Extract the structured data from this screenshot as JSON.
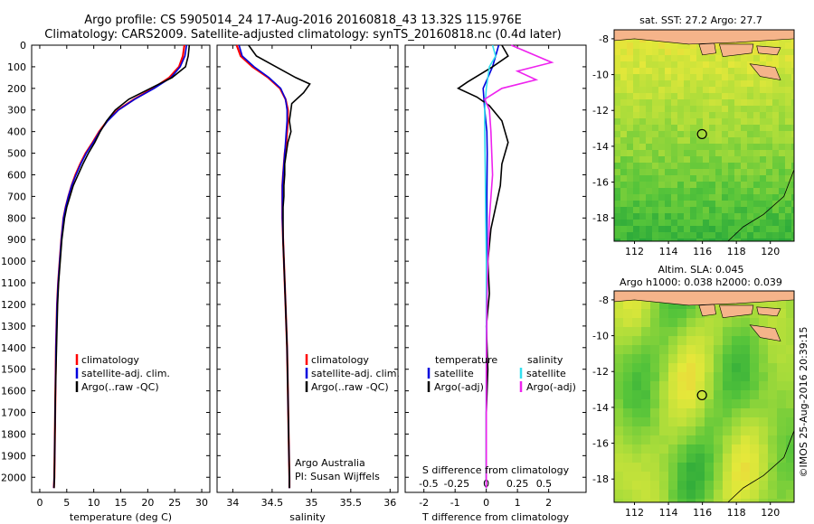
{
  "header": {
    "line1": "Argo profile: CS 5905014_24 17-Aug-2016 20160818_43 13.32S 115.976E",
    "line2": "Climatology: CARS2009. Satellite-adjusted climatology: synTS_20160818.nc (0.4d later)"
  },
  "colors": {
    "climatology": "#ff0000",
    "satellite": "#0000dd",
    "argo": "#000000",
    "sat_salinity": "#33e0f0",
    "argo_salinity": "#ee22ee",
    "land": "#f5b48a"
  },
  "chart_data": [
    {
      "type": "line",
      "name": "temperature-panel",
      "xlabel": "temperature (deg C)",
      "ylabel": "",
      "xlim": [
        -1.5,
        31.5
      ],
      "ylim": [
        0,
        2070
      ],
      "y_reversed": true,
      "xticks": [
        0,
        5,
        10,
        15,
        20,
        25,
        30
      ],
      "yticks": [
        0,
        100,
        200,
        300,
        400,
        500,
        600,
        700,
        800,
        900,
        1000,
        1100,
        1200,
        1300,
        1400,
        1500,
        1600,
        1700,
        1800,
        1900,
        2000
      ],
      "series": [
        {
          "name": "climatology",
          "color": "#ff0000",
          "x": [
            26.8,
            26.5,
            25.8,
            24,
            21,
            17.5,
            14.5,
            12.5,
            11,
            9.8,
            8.5,
            7.5,
            6.6,
            5.9,
            5.3,
            4.8,
            4.4,
            4.0,
            3.7,
            3.4,
            3.2,
            3.0,
            2.9,
            2.8,
            2.7,
            2.6
          ],
          "y": [
            0,
            50,
            100,
            150,
            200,
            250,
            300,
            350,
            400,
            450,
            500,
            550,
            600,
            650,
            700,
            750,
            800,
            900,
            1000,
            1100,
            1200,
            1400,
            1600,
            1800,
            2000,
            2050
          ]
        },
        {
          "name": "satellite-adj. clim.",
          "color": "#0000dd",
          "x": [
            27.2,
            26.9,
            26.0,
            24.3,
            21.2,
            17.6,
            14.6,
            12.6,
            11.1,
            9.9,
            8.6,
            7.6,
            6.7,
            5.9,
            5.3,
            4.8,
            4.4,
            4.0,
            3.7,
            3.4,
            3.2,
            3.0,
            2.9,
            2.8,
            2.7,
            2.6
          ],
          "y": [
            0,
            50,
            100,
            150,
            200,
            250,
            300,
            350,
            400,
            450,
            500,
            550,
            600,
            650,
            700,
            750,
            800,
            900,
            1000,
            1100,
            1200,
            1400,
            1600,
            1800,
            2000,
            2050
          ]
        },
        {
          "name": "Argo(..raw -QC)",
          "color": "#000000",
          "x": [
            27.7,
            27.5,
            27.0,
            24.5,
            20.5,
            16.5,
            14.0,
            12.4,
            11.2,
            10.2,
            9.0,
            8.0,
            7.1,
            6.2,
            5.6,
            5.0,
            4.6,
            4.1,
            3.8,
            3.5,
            3.3,
            3.1,
            2.9,
            2.8,
            2.7,
            2.65
          ],
          "y": [
            0,
            50,
            100,
            150,
            200,
            250,
            300,
            350,
            400,
            450,
            500,
            550,
            600,
            650,
            700,
            750,
            800,
            900,
            1000,
            1100,
            1200,
            1400,
            1600,
            1800,
            2000,
            2050
          ]
        }
      ],
      "legend": [
        "climatology",
        "satellite-adj. clim.",
        "Argo(..raw -QC)"
      ],
      "legend_placement": "lower-center"
    },
    {
      "type": "line",
      "name": "salinity-panel",
      "xlabel": "salinity",
      "xlim": [
        33.8,
        36.1
      ],
      "ylim": [
        0,
        2070
      ],
      "y_reversed": true,
      "xticks": [
        34,
        34.5,
        35,
        35.5,
        36
      ],
      "series": [
        {
          "name": "climatology",
          "color": "#ff0000",
          "x": [
            34.05,
            34.1,
            34.25,
            34.45,
            34.6,
            34.67,
            34.7,
            34.7,
            34.69,
            34.68,
            34.66,
            34.65,
            34.64,
            34.63,
            34.63,
            34.63,
            34.63,
            34.64,
            34.65,
            34.66,
            34.67,
            34.69,
            34.7,
            34.71,
            34.72,
            34.72
          ],
          "y": [
            0,
            50,
            100,
            150,
            200,
            250,
            300,
            350,
            400,
            450,
            500,
            550,
            600,
            650,
            700,
            750,
            800,
            900,
            1000,
            1100,
            1200,
            1400,
            1600,
            1800,
            2000,
            2050
          ]
        },
        {
          "name": "satellite-adj. clim.",
          "color": "#0000dd",
          "x": [
            34.08,
            34.12,
            34.27,
            34.46,
            34.61,
            34.67,
            34.69,
            34.69,
            34.68,
            34.67,
            34.66,
            34.65,
            34.64,
            34.63,
            34.63,
            34.63,
            34.63,
            34.64,
            34.65,
            34.66,
            34.67,
            34.69,
            34.7,
            34.71,
            34.72,
            34.72
          ],
          "y": [
            0,
            50,
            100,
            150,
            200,
            250,
            300,
            350,
            400,
            450,
            500,
            550,
            600,
            650,
            700,
            750,
            800,
            900,
            1000,
            1100,
            1200,
            1400,
            1600,
            1800,
            2000,
            2050
          ]
        },
        {
          "name": "Argo(..raw -QC)",
          "color": "#000000",
          "x": [
            34.2,
            34.3,
            34.55,
            34.8,
            34.98,
            34.9,
            34.75,
            34.72,
            34.74,
            34.7,
            34.68,
            34.66,
            34.66,
            34.65,
            34.65,
            34.64,
            34.64,
            34.64,
            34.65,
            34.66,
            34.67,
            34.69,
            34.7,
            34.71,
            34.72,
            34.72
          ],
          "y": [
            0,
            50,
            100,
            150,
            180,
            220,
            270,
            350,
            400,
            450,
            500,
            550,
            600,
            650,
            700,
            750,
            800,
            900,
            1000,
            1100,
            1200,
            1400,
            1600,
            1800,
            2000,
            2050
          ]
        }
      ],
      "legend": [
        "climatology",
        "satellite-adj. clim.",
        "Argo(..raw -QC)"
      ],
      "legend_placement": "lower-center",
      "annotation": [
        "Argo Australia",
        "PI: Susan Wijffels"
      ]
    },
    {
      "type": "line",
      "name": "difference-panel",
      "xlabel": "T difference from climatology",
      "top_axis_label": "S difference from climatology",
      "xlim": [
        -2.6,
        3.2
      ],
      "ylim": [
        0,
        2070
      ],
      "y_reversed": true,
      "xticks": [
        -2,
        -1,
        0,
        1,
        2
      ],
      "top_ticks": [
        "-0.5",
        "-0.25",
        "0",
        "0.25",
        "0.5"
      ],
      "top_tick_positions": [
        -1.85,
        -0.95,
        0,
        1.0,
        1.85
      ],
      "series": [
        {
          "name": "temperature satellite",
          "color": "#0000dd",
          "x": [
            0.4,
            0.3,
            0.2,
            0.05,
            -0.1,
            -0.05,
            0.02,
            0.03,
            0.02,
            0.02,
            0.01,
            0.01,
            0.0,
            0.0,
            0.0
          ],
          "y": [
            0,
            50,
            100,
            150,
            200,
            300,
            400,
            500,
            700,
            900,
            1100,
            1300,
            1600,
            1900,
            2050
          ]
        },
        {
          "name": "temperature Argo(-adj)",
          "color": "#000000",
          "x": [
            0.5,
            0.7,
            0.2,
            -0.6,
            -0.9,
            -0.3,
            0.1,
            0.5,
            0.7,
            0.5,
            0.45,
            0.3,
            0.15,
            0.05,
            0.1,
            0.0,
            0.05,
            0.0,
            0.0,
            0.0
          ],
          "y": [
            0,
            50,
            100,
            170,
            200,
            240,
            280,
            350,
            450,
            550,
            650,
            750,
            850,
            1000,
            1150,
            1300,
            1500,
            1700,
            1900,
            2050
          ]
        },
        {
          "name": "salinity satellite",
          "color": "#33e0f0",
          "x": [
            0.2,
            0.3,
            0.1,
            0.05,
            0.0,
            -0.05,
            -0.05,
            -0.03,
            -0.02,
            0.0,
            0.0,
            0.0,
            0.0
          ],
          "y": [
            0,
            50,
            100,
            150,
            200,
            300,
            400,
            600,
            800,
            1000,
            1300,
            1600,
            2050
          ]
        },
        {
          "name": "salinity Argo(-adj)",
          "color": "#ee22ee",
          "x": [
            0.8,
            2.1,
            1.0,
            1.6,
            0.5,
            -0.05,
            0.1,
            0.15,
            0.2,
            0.1,
            0.05,
            0.02,
            0.0,
            0.0
          ],
          "y": [
            0,
            80,
            120,
            160,
            200,
            250,
            300,
            400,
            600,
            800,
            1000,
            1200,
            1500,
            2050
          ]
        }
      ],
      "legend_groups": [
        {
          "title": "temperature",
          "items": [
            "satellite",
            "Argo(-adj)"
          ]
        },
        {
          "title": "salinity",
          "items": [
            "satellite",
            "Argo(-adj)"
          ]
        }
      ],
      "legend_placement": "lower-center"
    },
    {
      "type": "heatmap",
      "name": "sst-map",
      "title": "sat. SST: 27.2  Argo: 27.7",
      "xlim": [
        110.8,
        121.4
      ],
      "ylim": [
        -19.3,
        -7.5
      ],
      "xticks": [
        112,
        114,
        116,
        118,
        120
      ],
      "yticks": [
        -8,
        -10,
        -12,
        -14,
        -16,
        -18
      ],
      "marker": {
        "lon": 115.976,
        "lat": -13.32
      }
    },
    {
      "type": "heatmap",
      "name": "sla-map",
      "title": [
        "Altim. SLA: 0.045",
        "Argo h1000: 0.038 h2000: 0.039"
      ],
      "xlim": [
        110.8,
        121.4
      ],
      "ylim": [
        -19.3,
        -7.5
      ],
      "xticks": [
        112,
        114,
        116,
        118,
        120
      ],
      "yticks": [
        -8,
        -10,
        -12,
        -14,
        -16,
        -18
      ],
      "marker": {
        "lon": 115.976,
        "lat": -13.32
      }
    }
  ],
  "panels": {
    "t_legend": [
      "climatology",
      "satellite-adj. clim.",
      "Argo(..raw -QC)"
    ],
    "s_legend": [
      "climatology",
      "satellite-adj. clim.",
      "Argo(..raw -QC)"
    ],
    "s_note1": "Argo Australia",
    "s_note2": "PI: Susan Wijffels",
    "d_leg_t_title": "temperature",
    "d_leg_s_title": "salinity",
    "d_leg_item1": "satellite",
    "d_leg_item2": "Argo(-adj)",
    "d_top_label": "S difference from climatology"
  },
  "watermark": "©IMOS 25-Aug-2016 20:39:15"
}
